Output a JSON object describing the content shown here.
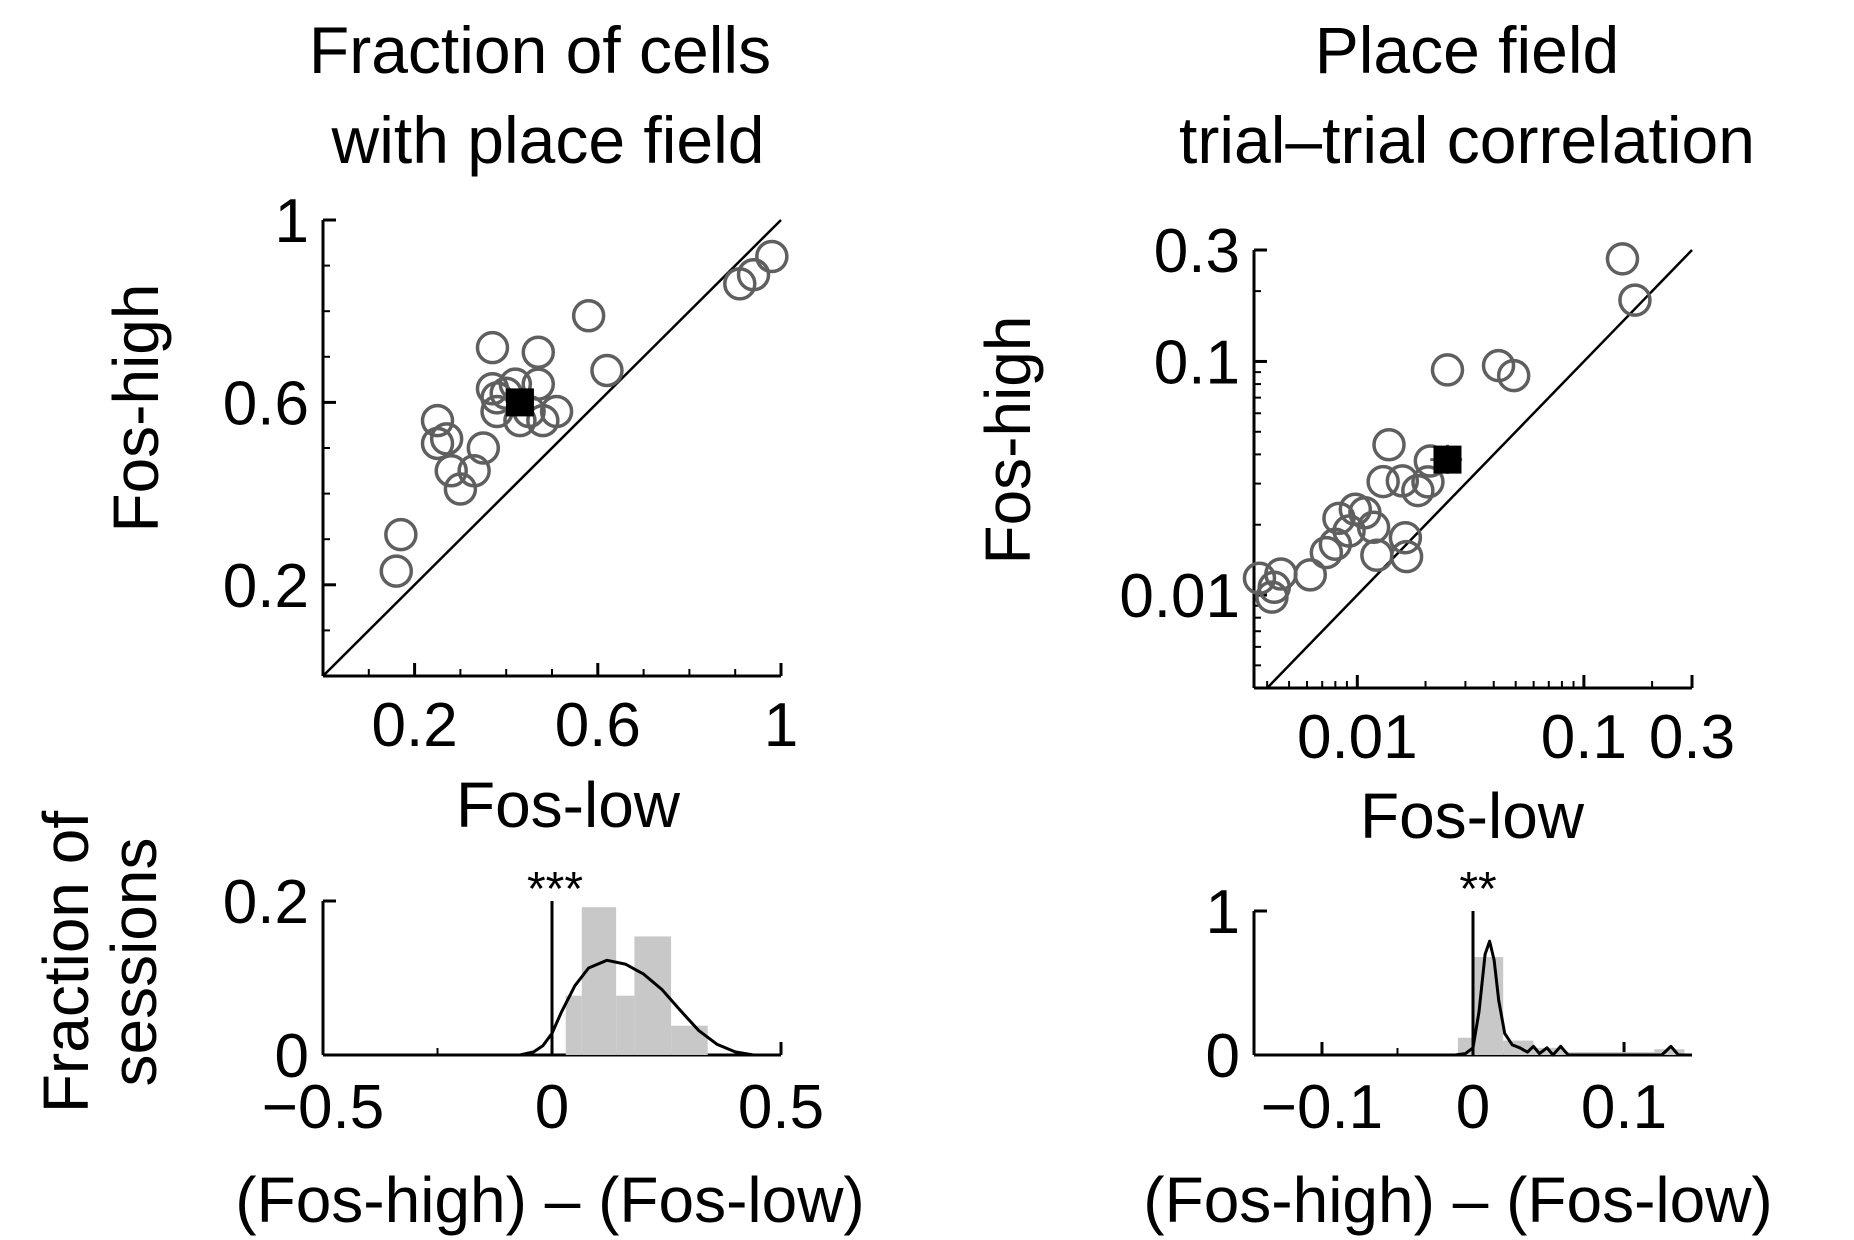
{
  "colors": {
    "marker_edge": "#5f5f5f",
    "mean_marker": "#000000",
    "histogram_fill": "#c8c8c8",
    "line": "#000000"
  },
  "chart_data": [
    {
      "id": "A",
      "type": "scatter",
      "title_lines": [
        "Fraction of cells",
        "with place field"
      ],
      "xlabel": "Fos-low",
      "ylabel": "Fos-high",
      "xscale": "linear",
      "yscale": "linear",
      "xlim": [
        0,
        1
      ],
      "ylim": [
        0,
        1
      ],
      "xticks": [
        0.2,
        0.6,
        1
      ],
      "xtick_labels": [
        "0.2",
        "0.6",
        "1"
      ],
      "yticks": [
        0.2,
        0.6,
        1
      ],
      "ytick_labels": [
        "0.2",
        "0.6",
        "1"
      ],
      "minor_ticks": [
        0.1,
        0.3,
        0.4,
        0.5,
        0.7,
        0.8,
        0.9
      ],
      "identity_line": true,
      "points": [
        {
          "x": 0.17,
          "y": 0.31
        },
        {
          "x": 0.16,
          "y": 0.23
        },
        {
          "x": 0.25,
          "y": 0.56
        },
        {
          "x": 0.25,
          "y": 0.51
        },
        {
          "x": 0.27,
          "y": 0.52
        },
        {
          "x": 0.28,
          "y": 0.45
        },
        {
          "x": 0.3,
          "y": 0.41
        },
        {
          "x": 0.33,
          "y": 0.45
        },
        {
          "x": 0.35,
          "y": 0.5
        },
        {
          "x": 0.37,
          "y": 0.72
        },
        {
          "x": 0.37,
          "y": 0.63
        },
        {
          "x": 0.38,
          "y": 0.61
        },
        {
          "x": 0.38,
          "y": 0.58
        },
        {
          "x": 0.4,
          "y": 0.62
        },
        {
          "x": 0.42,
          "y": 0.64
        },
        {
          "x": 0.43,
          "y": 0.56
        },
        {
          "x": 0.45,
          "y": 0.58
        },
        {
          "x": 0.47,
          "y": 0.71
        },
        {
          "x": 0.47,
          "y": 0.64
        },
        {
          "x": 0.48,
          "y": 0.56
        },
        {
          "x": 0.51,
          "y": 0.58
        },
        {
          "x": 0.58,
          "y": 0.79
        },
        {
          "x": 0.62,
          "y": 0.67
        },
        {
          "x": 0.91,
          "y": 0.86
        },
        {
          "x": 0.94,
          "y": 0.88
        },
        {
          "x": 0.98,
          "y": 0.92
        }
      ],
      "mean": {
        "x": 0.43,
        "y": 0.6,
        "xerr": 0.02,
        "yerr": 0.02
      }
    },
    {
      "id": "B",
      "type": "scatter",
      "title_lines": [
        "Place field",
        "trial–trial correlation"
      ],
      "xlabel": "Fos-low",
      "ylabel": "Fos-high",
      "xscale": "log",
      "yscale": "log",
      "xlim": [
        0.0035,
        0.3
      ],
      "ylim": [
        0.004,
        0.3
      ],
      "xticks": [
        0.01,
        0.1,
        0.3
      ],
      "xtick_labels": [
        "0.01",
        "0.1",
        "0.3"
      ],
      "yticks": [
        0.01,
        0.1,
        0.3
      ],
      "ytick_labels": [
        "0.01",
        "0.1",
        "0.3"
      ],
      "identity_line": true,
      "points": [
        {
          "x": 0.0037,
          "y": 0.0118
        },
        {
          "x": 0.0042,
          "y": 0.0098
        },
        {
          "x": 0.0043,
          "y": 0.0108
        },
        {
          "x": 0.0046,
          "y": 0.0123
        },
        {
          "x": 0.0062,
          "y": 0.0122
        },
        {
          "x": 0.0073,
          "y": 0.0152
        },
        {
          "x": 0.008,
          "y": 0.0165
        },
        {
          "x": 0.0083,
          "y": 0.0213
        },
        {
          "x": 0.0092,
          "y": 0.0188
        },
        {
          "x": 0.0098,
          "y": 0.0233
        },
        {
          "x": 0.0108,
          "y": 0.0225
        },
        {
          "x": 0.0118,
          "y": 0.0195
        },
        {
          "x": 0.0122,
          "y": 0.0148
        },
        {
          "x": 0.013,
          "y": 0.0306
        },
        {
          "x": 0.0138,
          "y": 0.044
        },
        {
          "x": 0.0158,
          "y": 0.0308
        },
        {
          "x": 0.0163,
          "y": 0.0176
        },
        {
          "x": 0.0165,
          "y": 0.0146
        },
        {
          "x": 0.0185,
          "y": 0.028
        },
        {
          "x": 0.0205,
          "y": 0.0305
        },
        {
          "x": 0.021,
          "y": 0.0375
        },
        {
          "x": 0.025,
          "y": 0.092
        },
        {
          "x": 0.042,
          "y": 0.096
        },
        {
          "x": 0.049,
          "y": 0.087
        },
        {
          "x": 0.148,
          "y": 0.275
        },
        {
          "x": 0.168,
          "y": 0.183
        }
      ],
      "mean": {
        "x": 0.025,
        "y": 0.038,
        "xerr_low": 0.004,
        "xerr_high": 0.004,
        "yerr_low": 0.005,
        "yerr_high": 0.006
      }
    },
    {
      "id": "C",
      "type": "bar",
      "xlabel": "(Fos-high) – (Fos-low)",
      "ylabel_lines": [
        "Fraction of",
        "sessions"
      ],
      "xlim": [
        -0.5,
        0.5
      ],
      "ylim": [
        0,
        0.2
      ],
      "xticks": [
        -0.5,
        0,
        0.5
      ],
      "xtick_labels": [
        "−0.5",
        "0",
        "0.5"
      ],
      "yticks": [
        0,
        0.2
      ],
      "ytick_labels": [
        "0",
        "0.2"
      ],
      "minor_ticks": [
        -0.25,
        0.25
      ],
      "bins": [
        {
          "x0": 0.03,
          "x1": 0.065,
          "value": 0.077
        },
        {
          "x0": 0.065,
          "x1": 0.14,
          "value": 0.192
        },
        {
          "x0": 0.14,
          "x1": 0.18,
          "value": 0.077
        },
        {
          "x0": 0.18,
          "x1": 0.26,
          "value": 0.154
        },
        {
          "x0": 0.26,
          "x1": 0.34,
          "value": 0.038
        }
      ],
      "density_curve": [
        [
          -0.07,
          0
        ],
        [
          -0.04,
          0.004
        ],
        [
          -0.02,
          0.012
        ],
        [
          0.0,
          0.028
        ],
        [
          0.02,
          0.055
        ],
        [
          0.05,
          0.09
        ],
        [
          0.08,
          0.113
        ],
        [
          0.12,
          0.123
        ],
        [
          0.16,
          0.118
        ],
        [
          0.2,
          0.105
        ],
        [
          0.24,
          0.085
        ],
        [
          0.28,
          0.058
        ],
        [
          0.32,
          0.032
        ],
        [
          0.36,
          0.014
        ],
        [
          0.4,
          0.004
        ],
        [
          0.44,
          0
        ]
      ],
      "zero_line": true,
      "significance_label": "***",
      "significance_x": 0.0
    },
    {
      "id": "D",
      "type": "bar",
      "xlabel": "(Fos-high) – (Fos-low)",
      "xlim": [
        -0.145,
        0.145
      ],
      "ylim": [
        0,
        1
      ],
      "xticks": [
        -0.1,
        0,
        0.1
      ],
      "xtick_labels": [
        "−0.1",
        "0",
        "0.1"
      ],
      "yticks": [
        0,
        1
      ],
      "ytick_labels": [
        "0",
        "1"
      ],
      "minor_ticks": [
        -0.05,
        0.05
      ],
      "bins": [
        {
          "x0": -0.01,
          "x1": 0.0,
          "value": 0.12
        },
        {
          "x0": 0.0,
          "x1": 0.02,
          "value": 0.68
        },
        {
          "x0": 0.02,
          "x1": 0.04,
          "value": 0.1
        },
        {
          "x0": 0.04,
          "x1": 0.06,
          "value": 0.05
        },
        {
          "x0": 0.06,
          "x1": 0.12,
          "value": 0.02
        },
        {
          "x0": 0.12,
          "x1": 0.14,
          "value": 0.04
        }
      ],
      "density_curve": [
        [
          -0.012,
          0
        ],
        [
          -0.005,
          0.01
        ],
        [
          0.0,
          0.05
        ],
        [
          0.004,
          0.3
        ],
        [
          0.008,
          0.7
        ],
        [
          0.011,
          0.79
        ],
        [
          0.014,
          0.66
        ],
        [
          0.017,
          0.38
        ],
        [
          0.021,
          0.15
        ],
        [
          0.026,
          0.07
        ],
        [
          0.031,
          0.05
        ],
        [
          0.036,
          0.02
        ],
        [
          0.04,
          0.06
        ],
        [
          0.044,
          0.01
        ],
        [
          0.049,
          0.05
        ],
        [
          0.053,
          0.0
        ],
        [
          0.058,
          0.06
        ],
        [
          0.063,
          0.0
        ],
        [
          0.1,
          0.0
        ],
        [
          0.125,
          0.0
        ],
        [
          0.131,
          0.06
        ],
        [
          0.136,
          0.0
        ],
        [
          0.142,
          0.0
        ]
      ],
      "zero_line": true,
      "significance_label": "**",
      "significance_x": 0.0
    }
  ]
}
